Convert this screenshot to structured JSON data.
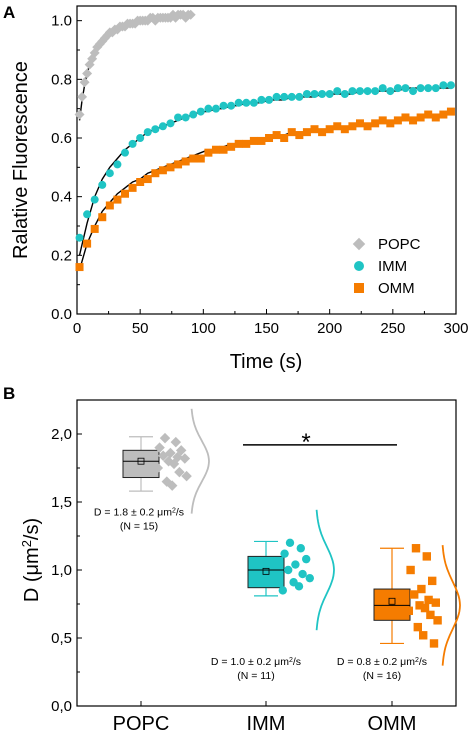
{
  "chart_data": [
    {
      "panel": "A",
      "type": "scatter",
      "xlabel": "Time (s)",
      "ylabel": "Ralative Fluorescence",
      "xlim": [
        0,
        300
      ],
      "ylim": [
        0.0,
        1.05
      ],
      "xticks": [
        "0",
        "50",
        "100",
        "150",
        "200",
        "250",
        "300"
      ],
      "yticks": [
        "0.0",
        "0.2",
        "0.4",
        "0.6",
        "0.8",
        "1.0"
      ],
      "legend_position": "bottom-right",
      "series": [
        {
          "name": "POPC",
          "marker": "diamond",
          "color": "#bdbdbd",
          "x": [
            2,
            4,
            6,
            8,
            10,
            12,
            14,
            16,
            18,
            20,
            22,
            24,
            26,
            28,
            30,
            32,
            34,
            36,
            38,
            40,
            42,
            44,
            46,
            48,
            50,
            52,
            54,
            56,
            58,
            60,
            62,
            64,
            66,
            68,
            70,
            72,
            74,
            76,
            78,
            80,
            82,
            84,
            86,
            88,
            90
          ],
          "y": [
            0.68,
            0.74,
            0.79,
            0.82,
            0.85,
            0.87,
            0.89,
            0.91,
            0.92,
            0.93,
            0.94,
            0.95,
            0.96,
            0.96,
            0.97,
            0.97,
            0.98,
            0.98,
            0.98,
            0.99,
            0.99,
            0.99,
            0.99,
            1.0,
            1.0,
            1.0,
            1.0,
            1.0,
            1.01,
            1.01,
            1.0,
            1.01,
            1.01,
            1.01,
            1.01,
            1.01,
            1.01,
            1.02,
            1.01,
            1.02,
            1.02,
            1.02,
            1.01,
            1.02,
            1.02
          ],
          "fit_y": [
            0.66,
            0.73,
            0.78,
            0.82,
            0.85,
            0.87,
            0.89,
            0.9,
            0.92,
            0.93,
            0.94,
            0.94,
            0.95,
            0.96,
            0.96,
            0.97,
            0.97,
            0.97,
            0.98,
            0.98,
            0.98,
            0.99,
            0.99,
            0.99,
            0.99,
            0.99,
            1.0,
            1.0,
            1.0,
            1.0,
            1.0,
            1.0,
            1.0,
            1.01,
            1.01,
            1.01,
            1.01,
            1.01,
            1.01,
            1.01,
            1.01,
            1.01,
            1.01,
            1.02,
            1.02
          ]
        },
        {
          "name": "IMM",
          "marker": "circle",
          "color": "#1fc4c4",
          "x": [
            2,
            8,
            14,
            20,
            26,
            32,
            38,
            44,
            50,
            56,
            62,
            68,
            74,
            80,
            86,
            92,
            98,
            104,
            110,
            116,
            122,
            128,
            134,
            140,
            146,
            152,
            158,
            164,
            170,
            176,
            182,
            188,
            194,
            200,
            206,
            212,
            218,
            224,
            230,
            236,
            242,
            248,
            254,
            260,
            266,
            272,
            278,
            284,
            290,
            296
          ],
          "y": [
            0.26,
            0.34,
            0.39,
            0.44,
            0.48,
            0.51,
            0.55,
            0.58,
            0.6,
            0.62,
            0.63,
            0.64,
            0.65,
            0.67,
            0.67,
            0.68,
            0.69,
            0.7,
            0.7,
            0.71,
            0.71,
            0.72,
            0.72,
            0.72,
            0.73,
            0.73,
            0.74,
            0.74,
            0.74,
            0.74,
            0.75,
            0.75,
            0.75,
            0.75,
            0.76,
            0.75,
            0.76,
            0.76,
            0.76,
            0.76,
            0.77,
            0.76,
            0.77,
            0.77,
            0.76,
            0.77,
            0.77,
            0.77,
            0.78,
            0.78
          ],
          "fit_y": [
            0.2,
            0.31,
            0.4,
            0.46,
            0.5,
            0.53,
            0.56,
            0.58,
            0.6,
            0.62,
            0.63,
            0.64,
            0.65,
            0.66,
            0.67,
            0.68,
            0.69,
            0.69,
            0.7,
            0.7,
            0.71,
            0.71,
            0.72,
            0.72,
            0.72,
            0.73,
            0.73,
            0.73,
            0.74,
            0.74,
            0.74,
            0.74,
            0.75,
            0.75,
            0.75,
            0.75,
            0.75,
            0.76,
            0.76,
            0.76,
            0.76,
            0.76,
            0.76,
            0.77,
            0.77,
            0.77,
            0.77,
            0.77,
            0.77,
            0.77
          ]
        },
        {
          "name": "OMM",
          "marker": "square",
          "color": "#f57c00",
          "x": [
            2,
            8,
            14,
            20,
            26,
            32,
            38,
            44,
            50,
            56,
            62,
            68,
            74,
            80,
            86,
            92,
            98,
            104,
            110,
            116,
            122,
            128,
            134,
            140,
            146,
            152,
            158,
            164,
            170,
            176,
            182,
            188,
            194,
            200,
            206,
            212,
            218,
            224,
            230,
            236,
            242,
            248,
            254,
            260,
            266,
            272,
            278,
            284,
            290,
            296
          ],
          "y": [
            0.16,
            0.24,
            0.29,
            0.33,
            0.37,
            0.39,
            0.41,
            0.43,
            0.45,
            0.46,
            0.48,
            0.49,
            0.5,
            0.51,
            0.52,
            0.53,
            0.53,
            0.55,
            0.56,
            0.56,
            0.57,
            0.58,
            0.58,
            0.59,
            0.59,
            0.6,
            0.61,
            0.6,
            0.62,
            0.61,
            0.62,
            0.63,
            0.62,
            0.63,
            0.64,
            0.63,
            0.64,
            0.65,
            0.64,
            0.65,
            0.66,
            0.65,
            0.66,
            0.67,
            0.66,
            0.67,
            0.68,
            0.67,
            0.68,
            0.69
          ],
          "fit_y": [
            0.15,
            0.24,
            0.3,
            0.35,
            0.38,
            0.41,
            0.43,
            0.45,
            0.46,
            0.48,
            0.49,
            0.5,
            0.51,
            0.52,
            0.53,
            0.54,
            0.55,
            0.56,
            0.56,
            0.57,
            0.58,
            0.58,
            0.59,
            0.59,
            0.6,
            0.6,
            0.61,
            0.61,
            0.62,
            0.62,
            0.62,
            0.63,
            0.63,
            0.63,
            0.64,
            0.64,
            0.64,
            0.65,
            0.65,
            0.65,
            0.66,
            0.66,
            0.66,
            0.66,
            0.67,
            0.67,
            0.67,
            0.67,
            0.68,
            0.68
          ]
        }
      ]
    },
    {
      "panel": "B",
      "type": "box",
      "ylabel_main": "D (",
      "ylabel_unit": "μm",
      "ylabel_sup": "2",
      "ylabel_tail": "/s)",
      "ylim": [
        0.0,
        2.25
      ],
      "yticks": [
        "0,0",
        "0,5",
        "1,0",
        "1,5",
        "2,0"
      ],
      "significance_label": "*",
      "significance_between": [
        "IMM",
        "OMM"
      ],
      "groups": [
        {
          "name": "POPC",
          "color": "#bdbdbd",
          "marker": "diamond",
          "whisker_low": 1.58,
          "q1": 1.68,
          "median": 1.8,
          "q3": 1.88,
          "whisker_high": 1.98,
          "mean": 1.8,
          "points": [
            1.97,
            1.94,
            1.9,
            1.88,
            1.86,
            1.84,
            1.83,
            1.82,
            1.8,
            1.78,
            1.75,
            1.72,
            1.69,
            1.65,
            1.62
          ],
          "annotation_line1_main": "D = 1.8 ± 0.2 μm",
          "annotation_line1_sup": "2",
          "annotation_line1_tail": "/s",
          "annotation_line2": "(N = 15)"
        },
        {
          "name": "IMM",
          "color": "#1fc4c4",
          "marker": "circle",
          "whisker_low": 0.81,
          "q1": 0.87,
          "median": 1.0,
          "q3": 1.1,
          "whisker_high": 1.21,
          "mean": 0.99,
          "points": [
            1.2,
            1.16,
            1.12,
            1.08,
            1.04,
            1.0,
            0.97,
            0.94,
            0.91,
            0.88,
            0.85
          ],
          "annotation_line1_main": "D = 1.0 ± 0.2 μm",
          "annotation_line1_sup": "2",
          "annotation_line1_tail": "/s",
          "annotation_line2": "(N = 11)"
        },
        {
          "name": "OMM",
          "color": "#f57c00",
          "marker": "square",
          "whisker_low": 0.46,
          "q1": 0.63,
          "median": 0.74,
          "q3": 0.86,
          "whisker_high": 1.16,
          "mean": 0.77,
          "points": [
            1.16,
            1.1,
            1.0,
            0.92,
            0.86,
            0.82,
            0.78,
            0.76,
            0.74,
            0.72,
            0.7,
            0.67,
            0.63,
            0.58,
            0.52,
            0.46
          ],
          "annotation_line1_main": "D = 0.8 ± 0.2 μm",
          "annotation_line1_sup": "2",
          "annotation_line1_tail": "/s",
          "annotation_line2": "(N = 16)"
        }
      ]
    }
  ]
}
